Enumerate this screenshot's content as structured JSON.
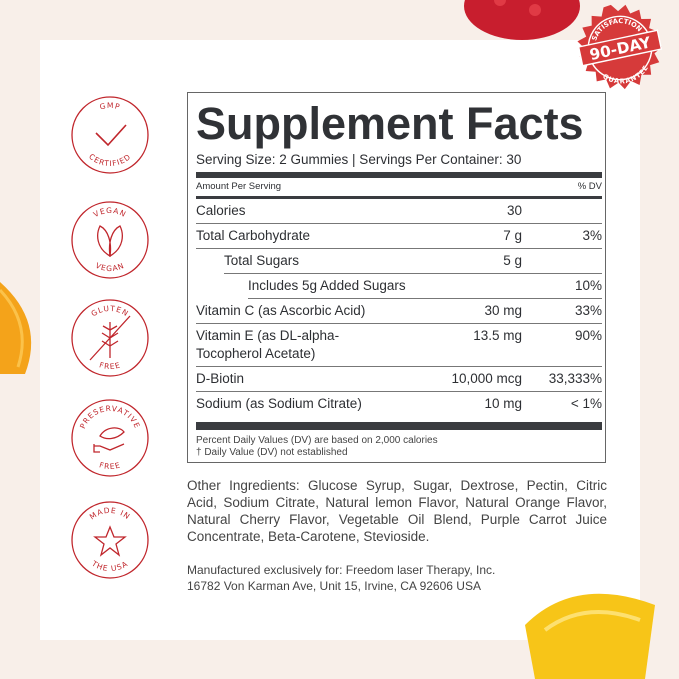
{
  "colors": {
    "background": "#f8efe9",
    "badge_red": "#c0262c",
    "text": "#2d2f33"
  },
  "badges": [
    {
      "icon": "check-icon",
      "top": "GMP",
      "bottom": "CERTIFIED"
    },
    {
      "icon": "leaf-icon",
      "top": "VEGAN",
      "bottom": "VEGAN"
    },
    {
      "icon": "wheat-crossed-icon",
      "top": "GLUTEN",
      "bottom": "FREE"
    },
    {
      "icon": "hand-leaf-icon",
      "top": "PRESERVATIVE",
      "bottom": "FREE"
    },
    {
      "icon": "star-icon",
      "top": "MADE IN",
      "bottom": "THE USA"
    }
  ],
  "guarantee": {
    "top": "SATISFACTION",
    "main": "90-DAY",
    "bottom": "GUARANTEE"
  },
  "facts": {
    "title": "Supplement Facts",
    "serving": "Serving Size: 2 Gummies | Servings Per Container: 30",
    "amount_header": "Amount Per Serving",
    "dv_header": "% DV",
    "rows": [
      {
        "name": "Calories",
        "amount": "30",
        "dv": ""
      },
      {
        "name": "Total Carbohydrate",
        "amount": "7 g",
        "dv": "3%"
      },
      {
        "name": "Total Sugars",
        "amount": "5 g",
        "dv": ""
      },
      {
        "name": "Includes  5g Added Sugars",
        "amount": "",
        "dv": "10%"
      },
      {
        "name": "Vitamin C (as Ascorbic Acid)",
        "amount": "30 mg",
        "dv": "33%"
      },
      {
        "name": "Vitamin E (as DL-alpha-Tocopherol Acetate)",
        "amount": "13.5 mg",
        "dv": "90%"
      },
      {
        "name": "D-Biotin",
        "amount": "10,000 mcg",
        "dv": "33,333%"
      },
      {
        "name": "Sodium (as Sodium Citrate)",
        "amount": "10 mg",
        "dv": "< 1%"
      }
    ],
    "footnote1": "Percent Daily Values (DV) are based on 2,000 calories",
    "footnote2": "†  Daily Value (DV) not established"
  },
  "ingredients": "Other Ingredients: Glucose Syrup, Sugar, Dextrose, Pectin, Citric Acid, Sodium Citrate, Natural lemon Flavor, Natural Orange Flavor, Natural Cherry Flavor, Vegetable Oil Blend, Purple Carrot Juice Concentrate, Beta-Carotene, Stevioside.",
  "manufacturer": {
    "line1": "Manufactured exclusively for: Freedom laser Therapy, Inc.",
    "line2": "16782 Von Karman Ave, Unit 15, Irvine, CA 92606 USA"
  }
}
